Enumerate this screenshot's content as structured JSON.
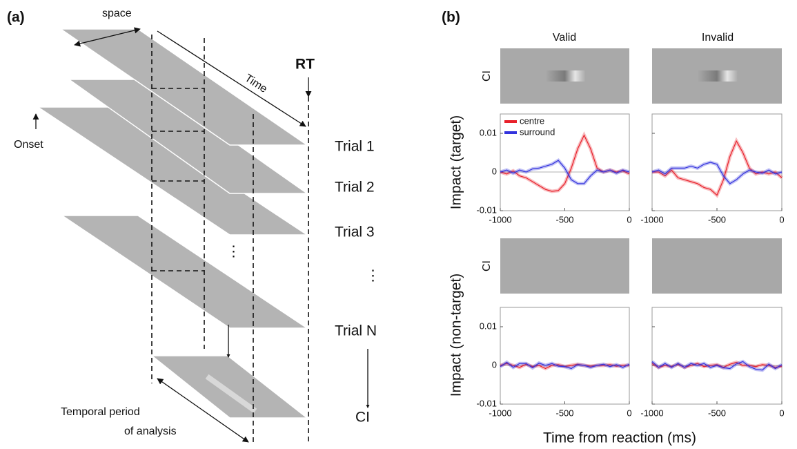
{
  "diagram": {
    "panel_label": "(a)",
    "space_label": "space",
    "time_label": "Time",
    "rt_label": "RT",
    "onset_label": "Onset",
    "trials": [
      "Trial 1",
      "Trial 2",
      "Trial 3",
      "⋮",
      "Trial N"
    ],
    "ellipsis": "⋮",
    "ci_label": "CI",
    "period_label": [
      "Temporal period",
      "of analysis"
    ]
  },
  "panel_b": {
    "panel_label": "(b)",
    "column_titles": [
      "Valid",
      "Invalid"
    ],
    "row_labels": [
      "CI",
      "CI"
    ],
    "y_labels": [
      "Impact (target)",
      "Impact (non-target)"
    ],
    "x_label": "Time from reaction (ms)"
  },
  "chart_data": [
    {
      "type": "line",
      "x": [
        -1000,
        -950,
        -900,
        -850,
        -800,
        -750,
        -700,
        -650,
        -600,
        -550,
        -500,
        -450,
        -400,
        -350,
        -300,
        -250,
        -200,
        -150,
        -100,
        -50,
        0
      ],
      "xlim": [
        -1000,
        0
      ],
      "xticks": [
        -1000,
        -500,
        0
      ],
      "ylim": [
        -0.01,
        0.015
      ],
      "yticks": [
        -0.01,
        0,
        0.01
      ],
      "legend": "upper left",
      "series": [
        {
          "name": "centre",
          "color": "#e8202a",
          "values": [
            0,
            -0.0005,
            0.0003,
            -0.001,
            -0.0015,
            -0.0025,
            -0.0035,
            -0.0045,
            -0.005,
            -0.0048,
            -0.003,
            0.001,
            0.006,
            0.0095,
            0.006,
            0.001,
            0,
            0.0005,
            0,
            0.0003,
            -0.0005
          ]
        },
        {
          "name": "surround",
          "color": "#3333dd",
          "values": [
            0,
            0.0005,
            -0.0003,
            0.0005,
            0,
            0.0008,
            0.001,
            0.0015,
            0.002,
            0.003,
            0.001,
            -0.002,
            -0.003,
            -0.003,
            -0.001,
            0.0005,
            0,
            0.0005,
            -0.0003,
            0.0005,
            0
          ]
        }
      ]
    },
    {
      "type": "line",
      "x": [
        -1000,
        -950,
        -900,
        -850,
        -800,
        -750,
        -700,
        -650,
        -600,
        -550,
        -500,
        -450,
        -400,
        -350,
        -300,
        -250,
        -200,
        -150,
        -100,
        -50,
        0
      ],
      "xlim": [
        -1000,
        0
      ],
      "xticks": [
        -1000,
        -500,
        0
      ],
      "ylim": [
        -0.01,
        0.015
      ],
      "yticks": [
        -0.01,
        0,
        0.01
      ],
      "series": [
        {
          "color": "#e8202a",
          "values": [
            0,
            0,
            -0.001,
            0.0005,
            -0.0015,
            -0.002,
            -0.0025,
            -0.003,
            -0.004,
            -0.0045,
            -0.006,
            -0.002,
            0.004,
            0.008,
            0.005,
            0.001,
            -0.0005,
            0,
            -0.0005,
            0,
            -0.0015
          ]
        },
        {
          "color": "#3333dd",
          "values": [
            0,
            0.0005,
            -0.0005,
            0.001,
            0.001,
            0.001,
            0.0015,
            0.001,
            0.002,
            0.0025,
            0.002,
            -0.001,
            -0.003,
            -0.002,
            -0.0005,
            0.0005,
            0,
            -0.0003,
            0.0005,
            -0.0005,
            0
          ]
        }
      ]
    },
    {
      "type": "line",
      "x": [
        -1000,
        -950,
        -900,
        -850,
        -800,
        -750,
        -700,
        -650,
        -600,
        -550,
        -500,
        -450,
        -400,
        -350,
        -300,
        -250,
        -200,
        -150,
        -100,
        -50,
        0
      ],
      "xlim": [
        -1000,
        0
      ],
      "xticks": [
        -1000,
        -500,
        0
      ],
      "ylim": [
        -0.01,
        0.015
      ],
      "yticks": [
        -0.01,
        0,
        0.01
      ],
      "series": [
        {
          "color": "#e8202a",
          "values": [
            0,
            0.0005,
            0,
            -0.0005,
            0.0003,
            -0.0003,
            0,
            -0.0008,
            0,
            0.0002,
            -0.0003,
            0,
            0.0003,
            0,
            -0.0002,
            0,
            0,
            0.0002,
            -0.0002,
            0,
            0
          ]
        },
        {
          "color": "#3333dd",
          "values": [
            -0.0003,
            0.0008,
            -0.0005,
            0.0005,
            0.0005,
            -0.0006,
            0.0006,
            0,
            0.0005,
            -0.0002,
            -0.0003,
            -0.0008,
            0.0002,
            0,
            -0.0005,
            0,
            0.0003,
            -0.0003,
            0.0002,
            -0.0005,
            0.0003
          ]
        }
      ]
    },
    {
      "type": "line",
      "x": [
        -1000,
        -950,
        -900,
        -850,
        -800,
        -750,
        -700,
        -650,
        -600,
        -550,
        -500,
        -450,
        -400,
        -350,
        -300,
        -250,
        -200,
        -150,
        -100,
        -50,
        0
      ],
      "xlim": [
        -1000,
        0
      ],
      "xticks": [
        -1000,
        -500,
        0
      ],
      "ylim": [
        -0.01,
        0.015
      ],
      "yticks": [
        -0.01,
        0,
        0.01
      ],
      "series": [
        {
          "color": "#e8202a",
          "values": [
            0.0005,
            -0.0005,
            0,
            -0.0003,
            0.0003,
            -0.0005,
            0,
            0.0005,
            -0.0003,
            0,
            0.0002,
            -0.0005,
            0.0003,
            0.0008,
            0,
            0,
            -0.0003,
            0.0002,
            0,
            -0.0005,
            -0.0002
          ]
        },
        {
          "color": "#3333dd",
          "values": [
            0.001,
            -0.0005,
            0.0005,
            -0.0005,
            0.0005,
            -0.0005,
            0.0005,
            0,
            0.0005,
            -0.0005,
            0,
            -0.0006,
            -0.0008,
            0.0004,
            0.001,
            -0.0003,
            -0.001,
            -0.0012,
            0.0003,
            -0.0008,
            0.0002
          ]
        }
      ]
    }
  ]
}
